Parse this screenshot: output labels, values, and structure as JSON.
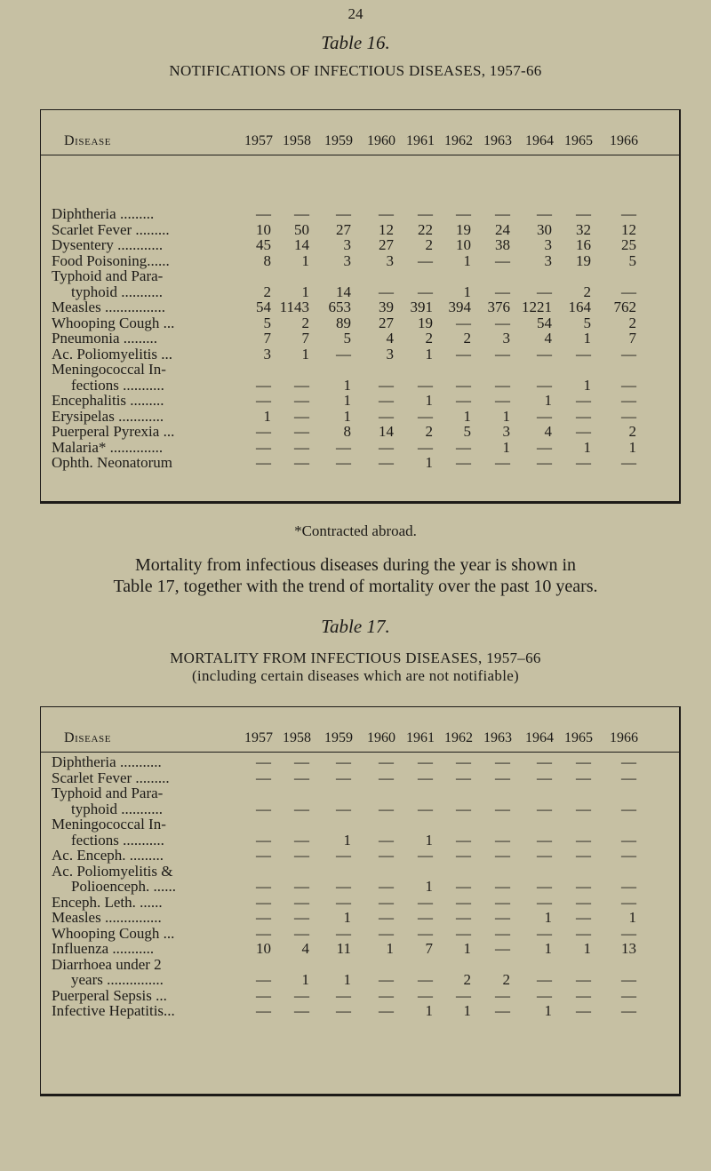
{
  "page_number": "24",
  "years": [
    "1957",
    "1958",
    "1959",
    "1960",
    "1961",
    "1962",
    "1963",
    "1964",
    "1965",
    "1966"
  ],
  "disease_header": "Disease",
  "table16": {
    "caption": "Table 16.",
    "title": "NOTIFICATIONS OF INFECTIOUS DISEASES, 1957-66",
    "rows": [
      {
        "label": [
          "Diphtheria ........."
        ],
        "values": [
          "—",
          "—",
          "—",
          "—",
          "—",
          "—",
          "—",
          "—",
          "—",
          "—"
        ]
      },
      {
        "label": [
          "Scarlet Fever ........."
        ],
        "values": [
          "10",
          "50",
          "27",
          "12",
          "22",
          "19",
          "24",
          "30",
          "32",
          "12"
        ]
      },
      {
        "label": [
          "Dysentery ............"
        ],
        "values": [
          "45",
          "14",
          "3",
          "27",
          "2",
          "10",
          "38",
          "3",
          "16",
          "25"
        ]
      },
      {
        "label": [
          "Food Poisoning......"
        ],
        "values": [
          "8",
          "1",
          "3",
          "3",
          "—",
          "1",
          "—",
          "3",
          "19",
          "5"
        ]
      },
      {
        "label": [
          "Typhoid and Para-",
          "typhoid ..........."
        ],
        "values": [
          "2",
          "1",
          "14",
          "—",
          "—",
          "1",
          "—",
          "—",
          "2",
          "—"
        ]
      },
      {
        "label": [
          "Measles ................"
        ],
        "values": [
          "54",
          "1143",
          "653",
          "39",
          "391",
          "394",
          "376",
          "1221",
          "164",
          "762"
        ]
      },
      {
        "label": [
          "Whooping Cough ..."
        ],
        "values": [
          "5",
          "2",
          "89",
          "27",
          "19",
          "—",
          "—",
          "54",
          "5",
          "2"
        ]
      },
      {
        "label": [
          "Pneumonia ........."
        ],
        "values": [
          "7",
          "7",
          "5",
          "4",
          "2",
          "2",
          "3",
          "4",
          "1",
          "7"
        ]
      },
      {
        "label": [
          "Ac. Poliomyelitis ..."
        ],
        "values": [
          "3",
          "1",
          "—",
          "3",
          "1",
          "—",
          "—",
          "—",
          "—",
          "—"
        ]
      },
      {
        "label": [
          "Meningococcal In-",
          "fections ..........."
        ],
        "values": [
          "—",
          "—",
          "1",
          "—",
          "—",
          "—",
          "—",
          "—",
          "1",
          "—"
        ]
      },
      {
        "label": [
          "Encephalitis ........."
        ],
        "values": [
          "—",
          "—",
          "1",
          "—",
          "1",
          "—",
          "—",
          "1",
          "—",
          "—"
        ]
      },
      {
        "label": [
          "Erysipelas ............"
        ],
        "values": [
          "1",
          "—",
          "1",
          "—",
          "—",
          "1",
          "1",
          "—",
          "—",
          "—"
        ]
      },
      {
        "label": [
          "Puerperal Pyrexia ..."
        ],
        "values": [
          "—",
          "—",
          "8",
          "14",
          "2",
          "5",
          "3",
          "4",
          "—",
          "2"
        ]
      },
      {
        "label": [
          "Malaria* .............."
        ],
        "values": [
          "—",
          "—",
          "—",
          "—",
          "—",
          "—",
          "1",
          "—",
          "1",
          "1"
        ]
      },
      {
        "label": [
          "Ophth. Neonatorum"
        ],
        "values": [
          "—",
          "—",
          "—",
          "—",
          "1",
          "—",
          "—",
          "—",
          "—",
          "—"
        ]
      }
    ],
    "footnote": "*Contracted abroad."
  },
  "paragraph": [
    "Mortality from infectious diseases during the year is shown in",
    "Table 17, together with the trend of mortality over the past 10 years."
  ],
  "table17": {
    "caption": "Table 17.",
    "title": "MORTALITY FROM INFECTIOUS DISEASES, 1957–66",
    "subtitle": "(including certain diseases which are not notifiable)",
    "rows": [
      {
        "label": [
          "Diphtheria ..........."
        ],
        "values": [
          "—",
          "—",
          "—",
          "—",
          "—",
          "—",
          "—",
          "—",
          "—",
          "—"
        ]
      },
      {
        "label": [
          "Scarlet Fever ........."
        ],
        "values": [
          "—",
          "—",
          "—",
          "—",
          "—",
          "—",
          "—",
          "—",
          "—",
          "—"
        ]
      },
      {
        "label": [
          "Typhoid and Para-",
          "typhoid ..........."
        ],
        "values": [
          "—",
          "—",
          "—",
          "—",
          "—",
          "—",
          "—",
          "—",
          "—",
          "—"
        ]
      },
      {
        "label": [
          "Meningococcal In-",
          "fections ..........."
        ],
        "values": [
          "—",
          "—",
          "1",
          "—",
          "1",
          "—",
          "—",
          "—",
          "—",
          "—"
        ]
      },
      {
        "label": [
          "Ac. Enceph. ........."
        ],
        "values": [
          "—",
          "—",
          "—",
          "—",
          "—",
          "—",
          "—",
          "—",
          "—",
          "—"
        ]
      },
      {
        "label": [
          "Ac. Poliomyelitis &",
          "Polioenceph. ......"
        ],
        "values": [
          "—",
          "—",
          "—",
          "—",
          "1",
          "—",
          "—",
          "—",
          "—",
          "—"
        ]
      },
      {
        "label": [
          "Enceph. Leth. ......"
        ],
        "values": [
          "—",
          "—",
          "—",
          "—",
          "—",
          "—",
          "—",
          "—",
          "—",
          "—"
        ]
      },
      {
        "label": [
          "Measles ..............."
        ],
        "values": [
          "—",
          "—",
          "1",
          "—",
          "—",
          "—",
          "—",
          "1",
          "—",
          "1"
        ]
      },
      {
        "label": [
          "Whooping Cough ..."
        ],
        "values": [
          "—",
          "—",
          "—",
          "—",
          "—",
          "—",
          "—",
          "—",
          "—",
          "—"
        ]
      },
      {
        "label": [
          "Influenza ..........."
        ],
        "values": [
          "10",
          "4",
          "11",
          "1",
          "7",
          "1",
          "—",
          "1",
          "1",
          "13"
        ]
      },
      {
        "label": [
          "Diarrhoea under 2",
          "years ..............."
        ],
        "values": [
          "—",
          "1",
          "1",
          "—",
          "—",
          "2",
          "2",
          "—",
          "—",
          "—"
        ]
      },
      {
        "label": [
          "Puerperal Sepsis ..."
        ],
        "values": [
          "—",
          "—",
          "—",
          "—",
          "—",
          "—",
          "—",
          "—",
          "—",
          "—"
        ]
      },
      {
        "label": [
          "Infective Hepatitis..."
        ],
        "values": [
          "—",
          "—",
          "—",
          "—",
          "1",
          "1",
          "—",
          "1",
          "—",
          "—"
        ]
      }
    ]
  }
}
